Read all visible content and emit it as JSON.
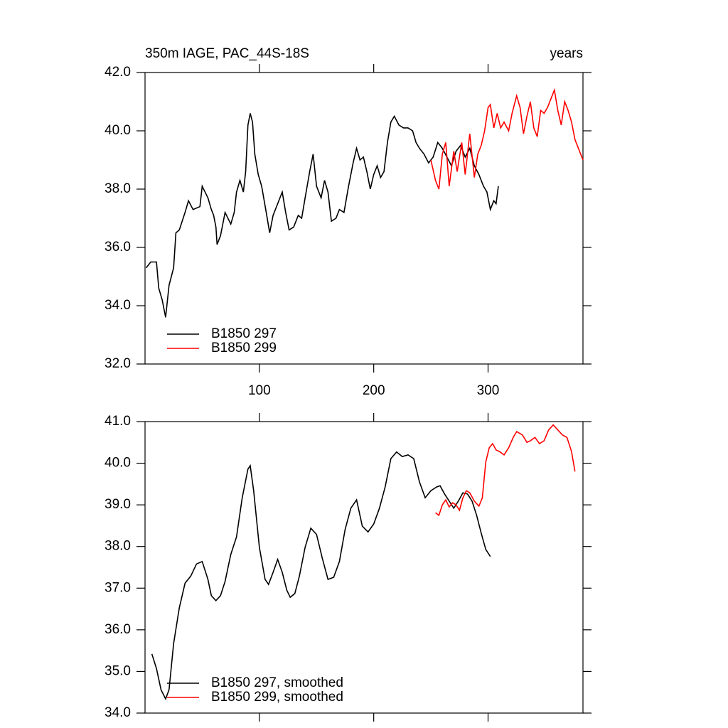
{
  "chart_data": [
    {
      "type": "line",
      "title": "350m IAGE, PAC_44S-18S",
      "title_right": "years",
      "xlim": [
        0,
        383
      ],
      "xticks": [
        100,
        200,
        300
      ],
      "xtick_labels": true,
      "ylim": [
        32,
        42
      ],
      "yticks": [
        {
          "value": 32,
          "label": "32.0"
        },
        {
          "value": 34,
          "label": "34.0"
        },
        {
          "value": 36,
          "label": "36.0"
        },
        {
          "value": 38,
          "label": "38.0"
        },
        {
          "value": 40,
          "label": "40.0"
        },
        {
          "value": 42,
          "label": "42.0"
        }
      ],
      "legend": "lower left",
      "series": [
        {
          "name": "B1850 297",
          "color": "#000000",
          "x": [
            1,
            5,
            10,
            12,
            15,
            18,
            21,
            25,
            27,
            30,
            35,
            38,
            42,
            48,
            50,
            55,
            58,
            60,
            62,
            63,
            66,
            70,
            75,
            78,
            80,
            83,
            86,
            88,
            90,
            92,
            94,
            96,
            99,
            102,
            106,
            109,
            112,
            116,
            120,
            123,
            126,
            130,
            134,
            137,
            140,
            144,
            147,
            150,
            154,
            157,
            160,
            163,
            167,
            170,
            174,
            178,
            182,
            185,
            188,
            191,
            194,
            197,
            200,
            203,
            206,
            209,
            212,
            215,
            218,
            222,
            226,
            230,
            234,
            237,
            240,
            244,
            248,
            252,
            256,
            260,
            264,
            268,
            272,
            276,
            280,
            284,
            288,
            292,
            296,
            299,
            302,
            305,
            307,
            309
          ],
          "values": [
            35.3,
            35.5,
            35.5,
            34.6,
            34.2,
            33.6,
            34.7,
            35.3,
            36.5,
            36.6,
            37.2,
            37.6,
            37.3,
            37.4,
            38.1,
            37.7,
            37.3,
            37.1,
            36.7,
            36.1,
            36.4,
            37.2,
            36.8,
            37.2,
            37.9,
            38.3,
            37.9,
            38.6,
            40.2,
            40.6,
            40.3,
            39.2,
            38.5,
            38.1,
            37.2,
            36.5,
            37.1,
            37.5,
            37.9,
            37.2,
            36.6,
            36.7,
            37.1,
            37.0,
            37.7,
            38.6,
            39.2,
            38.1,
            37.7,
            38.3,
            37.9,
            36.9,
            37.0,
            37.3,
            37.2,
            38.1,
            38.9,
            39.4,
            39.0,
            39.1,
            38.6,
            38.0,
            38.5,
            38.8,
            38.4,
            38.6,
            39.6,
            40.3,
            40.5,
            40.2,
            40.1,
            40.1,
            40.0,
            39.6,
            39.4,
            39.2,
            38.9,
            39.1,
            39.6,
            39.4,
            39.1,
            38.8,
            39.3,
            39.5,
            39.1,
            39.4,
            38.8,
            38.5,
            38.1,
            37.9,
            37.3,
            37.6,
            37.5,
            38.1
          ]
        },
        {
          "name": "B1850 299",
          "color": "#ff0000",
          "x": [
            250,
            254,
            257,
            260,
            263,
            266,
            270,
            273,
            277,
            280,
            284,
            288,
            291,
            294,
            297,
            300,
            302,
            305,
            308,
            311,
            314,
            318,
            321,
            325,
            328,
            331,
            334,
            337,
            340,
            343,
            346,
            349,
            352,
            355,
            358,
            361,
            364,
            367,
            370,
            373,
            376,
            379,
            383
          ],
          "values": [
            39.0,
            38.3,
            38.0,
            39.2,
            39.6,
            38.1,
            39.3,
            38.6,
            39.6,
            38.5,
            39.9,
            38.4,
            39.2,
            39.5,
            40.0,
            40.8,
            40.9,
            40.1,
            40.6,
            40.1,
            40.3,
            40.0,
            40.6,
            41.2,
            40.8,
            39.9,
            40.5,
            41.0,
            40.1,
            39.8,
            40.7,
            40.6,
            40.8,
            41.1,
            41.4,
            40.7,
            40.2,
            41.0,
            40.7,
            40.3,
            39.7,
            39.4,
            39.0
          ]
        }
      ]
    },
    {
      "type": "line",
      "xlim": [
        0,
        383
      ],
      "xticks": [
        100,
        200,
        300
      ],
      "xtick_labels": false,
      "ylim": [
        34,
        41
      ],
      "yticks": [
        {
          "value": 34,
          "label": "34.0"
        },
        {
          "value": 35,
          "label": "35.0"
        },
        {
          "value": 36,
          "label": "36.0"
        },
        {
          "value": 37,
          "label": "37.0"
        },
        {
          "value": 38,
          "label": "38.0"
        },
        {
          "value": 39,
          "label": "39.0"
        },
        {
          "value": 40,
          "label": "40.0"
        },
        {
          "value": 41,
          "label": "41.0"
        }
      ],
      "legend": "lower left",
      "series": [
        {
          "name": "B1850 297, smoothed",
          "color": "#000000",
          "x": [
            6,
            10,
            14,
            18,
            21,
            25,
            30,
            35,
            40,
            45,
            50,
            55,
            58,
            62,
            66,
            70,
            75,
            80,
            85,
            90,
            92,
            95,
            100,
            105,
            108,
            112,
            116,
            120,
            124,
            127,
            131,
            135,
            140,
            145,
            150,
            155,
            160,
            165,
            170,
            175,
            180,
            185,
            190,
            195,
            200,
            205,
            210,
            215,
            220,
            225,
            230,
            235,
            240,
            245,
            250,
            255,
            258,
            262,
            266,
            270,
            274,
            278,
            282,
            286,
            290,
            294,
            298,
            302
          ],
          "values": [
            35.42,
            35.07,
            34.56,
            34.34,
            34.56,
            35.67,
            36.53,
            37.12,
            37.29,
            37.58,
            37.64,
            37.21,
            36.82,
            36.7,
            36.82,
            37.16,
            37.81,
            38.23,
            39.17,
            39.86,
            39.94,
            39.34,
            37.98,
            37.21,
            37.09,
            37.38,
            37.69,
            37.38,
            36.95,
            36.78,
            36.87,
            37.29,
            37.98,
            38.44,
            38.29,
            37.72,
            37.21,
            37.26,
            37.64,
            38.41,
            38.92,
            39.12,
            38.49,
            38.35,
            38.54,
            38.92,
            39.43,
            40.11,
            40.27,
            40.16,
            40.2,
            40.11,
            39.55,
            39.17,
            39.34,
            39.43,
            39.46,
            39.26,
            39.09,
            38.92,
            39.09,
            39.29,
            39.26,
            39.09,
            38.75,
            38.32,
            37.93,
            37.76
          ]
        },
        {
          "name": "B1850 299, smoothed",
          "color": "#ff0000",
          "x": [
            254,
            257,
            260,
            263,
            266,
            269,
            272,
            275,
            278,
            281,
            284,
            288,
            292,
            295,
            298,
            301,
            304,
            307,
            310,
            314,
            318,
            322,
            325,
            330,
            334,
            337,
            341,
            345,
            349,
            353,
            357,
            361,
            365,
            369,
            373,
            376
          ],
          "values": [
            38.81,
            38.75,
            39.0,
            39.12,
            38.95,
            39.05,
            39.0,
            38.87,
            39.17,
            39.34,
            39.29,
            39.09,
            38.97,
            39.17,
            40.03,
            40.37,
            40.47,
            40.32,
            40.28,
            40.2,
            40.37,
            40.62,
            40.76,
            40.68,
            40.5,
            40.54,
            40.62,
            40.47,
            40.54,
            40.8,
            40.92,
            40.8,
            40.68,
            40.62,
            40.28,
            39.8
          ]
        }
      ]
    }
  ]
}
